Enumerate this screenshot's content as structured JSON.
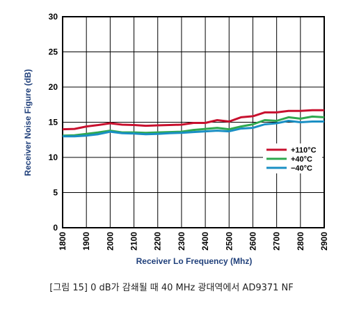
{
  "chart_data": {
    "type": "line",
    "ylabel": "Receiver Noise Figure (dB)",
    "xlabel": "Receiver Lo Frequency (Mhz)",
    "xlim": [
      1800,
      2900
    ],
    "ylim": [
      0,
      30
    ],
    "x_ticks": [
      "1800",
      "1900",
      "2000",
      "2100",
      "2200",
      "2300",
      "2400",
      "2500",
      "2600",
      "2700",
      "2800",
      "2900"
    ],
    "y_ticks": [
      "0",
      "5",
      "10",
      "15",
      "20",
      "25",
      "30"
    ],
    "grid": true,
    "legend_position": "right",
    "x": [
      1800,
      1850,
      1900,
      1950,
      2000,
      2050,
      2100,
      2150,
      2200,
      2250,
      2300,
      2350,
      2400,
      2450,
      2500,
      2550,
      2600,
      2650,
      2700,
      2750,
      2800,
      2850,
      2900
    ],
    "series": [
      {
        "name": "+110°C",
        "color": "#c8102e",
        "values": [
          14.0,
          14.05,
          14.4,
          14.6,
          14.85,
          14.65,
          14.6,
          14.5,
          14.55,
          14.6,
          14.65,
          14.9,
          14.9,
          15.3,
          15.1,
          15.7,
          15.85,
          16.4,
          16.4,
          16.6,
          16.6,
          16.7,
          16.7
        ]
      },
      {
        "name": "+40°C",
        "color": "#2fa84f",
        "values": [
          13.1,
          13.15,
          13.35,
          13.55,
          13.8,
          13.55,
          13.55,
          13.5,
          13.55,
          13.6,
          13.65,
          13.9,
          14.05,
          14.2,
          14.0,
          14.4,
          14.7,
          15.3,
          15.2,
          15.7,
          15.5,
          15.8,
          15.7
        ]
      },
      {
        "name": "−40°C",
        "color": "#1a8fc4",
        "values": [
          13.0,
          13.0,
          13.1,
          13.3,
          13.65,
          13.45,
          13.4,
          13.3,
          13.35,
          13.45,
          13.5,
          13.6,
          13.7,
          13.8,
          13.7,
          14.1,
          14.2,
          14.7,
          14.85,
          15.2,
          15.0,
          15.1,
          15.1
        ]
      }
    ]
  },
  "caption": "[그림 15] 0 dB가 감쇄될 때 40 MHz 광대역에서 AD9371 NF"
}
